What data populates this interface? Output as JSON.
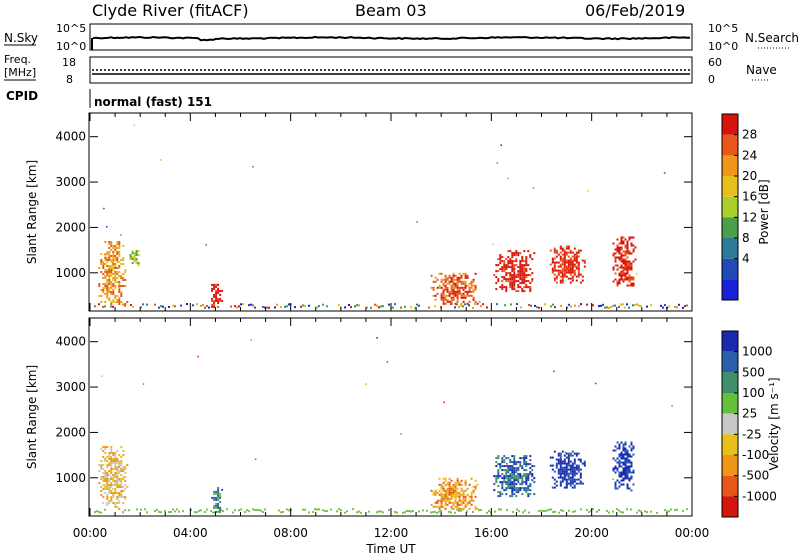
{
  "header": {
    "station": "Clyde River (fitACF)",
    "beam": "Beam 03",
    "date": "06/Feb/2019"
  },
  "noise_panel": {
    "left_label": "N.Sky",
    "right_label": "N.Search",
    "left_ticks": [
      "10^5",
      "10^0"
    ],
    "right_ticks": [
      "10^5",
      "10^0"
    ]
  },
  "freq_panel": {
    "left_label_1": "Freq.",
    "left_label_2": "[MHz]",
    "right_label": "Nave",
    "left_ticks": [
      "18",
      "8"
    ],
    "right_ticks": [
      "60",
      "0"
    ]
  },
  "cpid": {
    "label": "CPID",
    "text": "normal (fast) 151"
  },
  "colors": {
    "scatter_red": "#e8261a",
    "scatter_orange": "#f07a18",
    "scatter_yellow": "#e8c01a",
    "scatter_green": "#4aa04a",
    "scatter_blue": "#1a3fb0",
    "ground_green": "#7cc34a"
  },
  "chart_data": [
    {
      "type": "heatmap",
      "title": "",
      "xlabel": "",
      "ylabel": "Slant Range [km]",
      "x_range": [
        "00:00",
        "24:00"
      ],
      "ylim": [
        180,
        4500
      ],
      "y_ticks": [
        "1000",
        "2000",
        "3000",
        "4000"
      ],
      "colorbar": {
        "label": "Power [dB]",
        "ticks": [
          "4",
          "8",
          "12",
          "16",
          "20",
          "24",
          "28"
        ],
        "colors": [
          "#1a22d6",
          "#2149b8",
          "#2e7a9a",
          "#4aa04a",
          "#a8cf2a",
          "#e8c01a",
          "#f0961a",
          "#e8561a",
          "#d6140e"
        ],
        "range": [
          0,
          30
        ]
      },
      "scatter_regions": [
        {
          "t_start": "00:15",
          "t_end": "01:30",
          "r_min": 300,
          "r_max": 1700,
          "value": "20"
        },
        {
          "t_start": "01:30",
          "t_end": "02:00",
          "r_min": 1150,
          "r_max": 1500,
          "value": "12"
        },
        {
          "t_start": "04:45",
          "t_end": "05:15",
          "r_min": 250,
          "r_max": 800,
          "value": "28"
        },
        {
          "t_start": "13:30",
          "t_end": "15:30",
          "r_min": 300,
          "r_max": 1000,
          "value": "24"
        },
        {
          "t_start": "16:00",
          "t_end": "17:45",
          "r_min": 600,
          "r_max": 1500,
          "value": "28"
        },
        {
          "t_start": "18:15",
          "t_end": "19:45",
          "r_min": 800,
          "r_max": 1600,
          "value": "28"
        },
        {
          "t_start": "20:45",
          "t_end": "21:45",
          "r_min": 700,
          "r_max": 1800,
          "value": "28"
        }
      ]
    },
    {
      "type": "heatmap",
      "title": "",
      "xlabel": "Time UT",
      "ylabel": "Slant Range [km]",
      "x_range": [
        "00:00",
        "24:00"
      ],
      "ylim": [
        180,
        4500
      ],
      "x_ticks": [
        "00:00",
        "04:00",
        "08:00",
        "12:00",
        "16:00",
        "20:00",
        "00:00"
      ],
      "y_ticks": [
        "1000",
        "2000",
        "3000",
        "4000"
      ],
      "colorbar": {
        "label": "Velocity [m s⁻¹]",
        "ticks": [
          "1000",
          "500",
          "100",
          "25",
          "-25",
          "-100",
          "-500",
          "-1000"
        ],
        "colors": [
          "#1a2ab0",
          "#2a5fae",
          "#3e8f6a",
          "#64c23a",
          "#c8c8c8",
          "#e8c01a",
          "#f0961a",
          "#e8561a",
          "#d6140e"
        ]
      },
      "scatter_regions": [
        {
          "t_start": "00:15",
          "t_end": "01:30",
          "r_min": 300,
          "r_max": 1700,
          "value": "-100"
        },
        {
          "t_start": "04:45",
          "t_end": "05:15",
          "r_min": 250,
          "r_max": 800,
          "value": "100"
        },
        {
          "t_start": "13:30",
          "t_end": "15:30",
          "r_min": 300,
          "r_max": 1000,
          "value": "-500"
        },
        {
          "t_start": "16:00",
          "t_end": "17:45",
          "r_min": 600,
          "r_max": 1500,
          "value": "500"
        },
        {
          "t_start": "18:15",
          "t_end": "19:45",
          "r_min": 800,
          "r_max": 1600,
          "value": "1000"
        },
        {
          "t_start": "20:45",
          "t_end": "21:45",
          "r_min": 700,
          "r_max": 1800,
          "value": "1000"
        }
      ]
    }
  ]
}
